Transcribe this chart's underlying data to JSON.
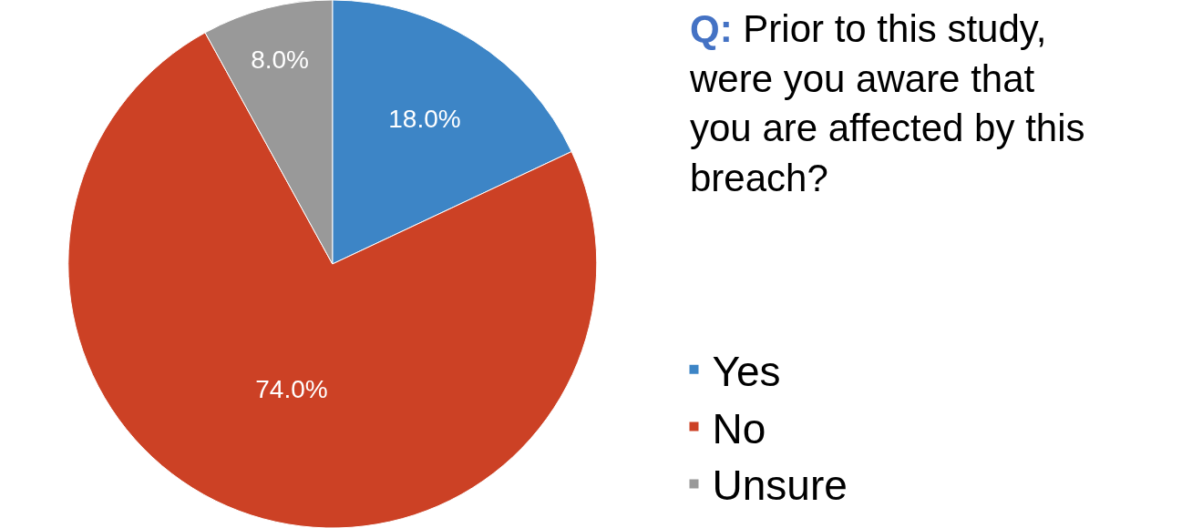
{
  "chart_data": {
    "type": "pie",
    "title": "Q: Prior to this study,\nwere you aware that\nyou are affected by this\nbreach?",
    "categories": [
      "Yes",
      "No",
      "Unsure"
    ],
    "values": [
      18,
      74,
      8
    ],
    "colors": [
      "#3d85c6",
      "#cc4125",
      "#999999"
    ],
    "value_labels": [
      "18.0%",
      "74.0%",
      "8.0%"
    ],
    "legend": "right"
  }
}
